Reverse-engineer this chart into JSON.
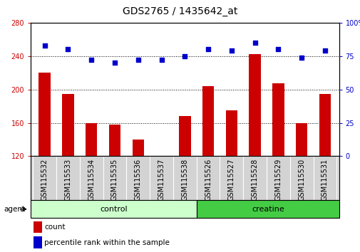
{
  "title": "GDS2765 / 1435642_at",
  "samples": [
    "GSM115532",
    "GSM115533",
    "GSM115534",
    "GSM115535",
    "GSM115536",
    "GSM115537",
    "GSM115538",
    "GSM115526",
    "GSM115527",
    "GSM115528",
    "GSM115529",
    "GSM115530",
    "GSM115531"
  ],
  "counts": [
    220,
    195,
    160,
    158,
    140,
    120,
    168,
    204,
    175,
    242,
    207,
    160,
    195
  ],
  "percentiles": [
    83,
    80,
    72,
    70,
    72,
    72,
    75,
    80,
    79,
    85,
    80,
    74,
    79
  ],
  "groups": [
    "control",
    "control",
    "control",
    "control",
    "control",
    "control",
    "control",
    "creatine",
    "creatine",
    "creatine",
    "creatine",
    "creatine",
    "creatine"
  ],
  "ylim_left": [
    120,
    280
  ],
  "ylim_right": [
    0,
    100
  ],
  "yticks_left": [
    120,
    160,
    200,
    240,
    280
  ],
  "yticks_right": [
    0,
    25,
    50,
    75,
    100
  ],
  "bar_color": "#cc0000",
  "dot_color": "#0000cc",
  "control_color": "#ccffcc",
  "creatine_color": "#44cc44",
  "bg_color": "#ffffff",
  "xtick_bg_color": "#d3d3d3",
  "bar_width": 0.5,
  "tick_label_fontsize": 7,
  "title_fontsize": 10,
  "legend_fontsize": 7.5,
  "group_fontsize": 8
}
